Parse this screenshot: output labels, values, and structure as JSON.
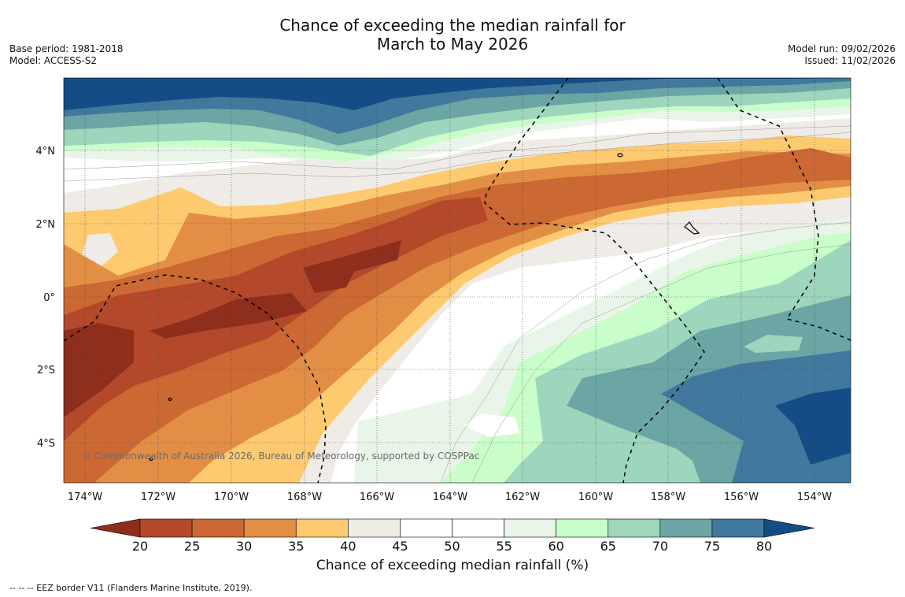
{
  "title": {
    "line1": "Chance of exceeding the median rainfall for",
    "line2": "March to May 2026"
  },
  "meta_left": {
    "base_period": "Base period: 1981-2018",
    "model": "Model: ACCESS-S2"
  },
  "meta_right": {
    "model_run": "Model run: 09/02/2026",
    "issued": "Issued: 11/02/2026"
  },
  "credit": "© Commonwealth of Australia 2026, Bureau of Meteorology, supported by COSPPac",
  "lat_labels": [
    "4°N",
    "2°N",
    "0°",
    "2°S",
    "4°S"
  ],
  "lon_labels": [
    "174°W",
    "172°W",
    "170°W",
    "168°W",
    "166°W",
    "164°W",
    "162°W",
    "160°W",
    "158°W",
    "156°W",
    "154°W"
  ],
  "colorbar": {
    "label": "Chance of exceeding median rainfall (%)",
    "ticks": [
      "20",
      "25",
      "30",
      "35",
      "40",
      "45",
      "50",
      "55",
      "60",
      "65",
      "70",
      "75",
      "80"
    ],
    "colors": [
      "#8e2f1d",
      "#b3492a",
      "#cc6834",
      "#e28f45",
      "#fdca70",
      "#efebe6",
      "#ffffff",
      "#ffffff",
      "#e8f5e8",
      "#c9fdc9",
      "#9dd5bd",
      "#6ba5a4",
      "#40799d",
      "#144d85"
    ]
  },
  "footnote": "--  --  -- EEZ border V11 (Flanders Marine Institute, 2019)."
}
